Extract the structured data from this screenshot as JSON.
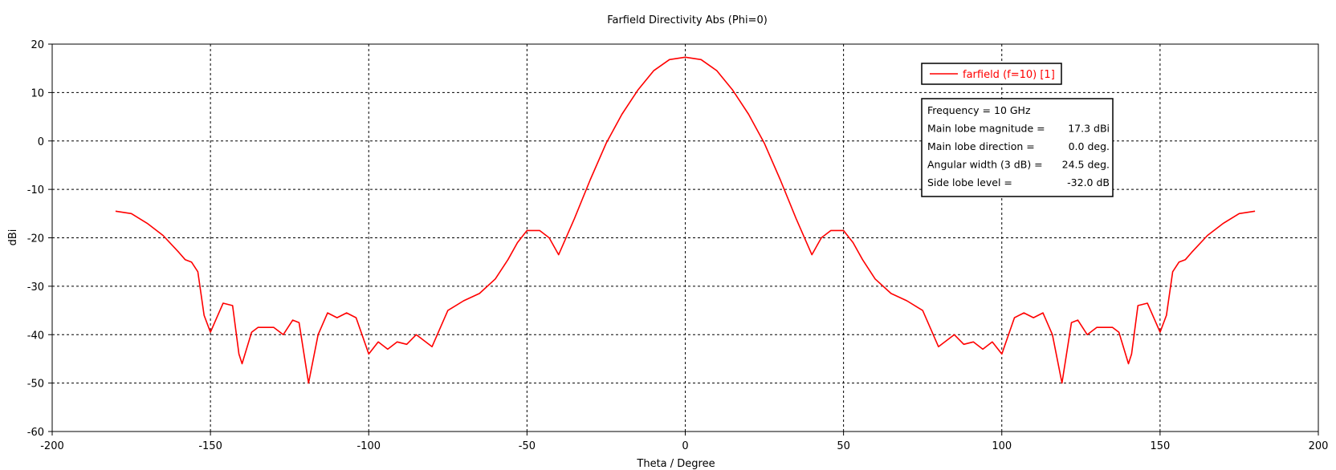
{
  "chart_data": {
    "type": "line",
    "title": "Farfield Directivity Abs (Phi=0)",
    "xlabel": "Theta / Degree",
    "ylabel": "dBi",
    "xlim": [
      -200,
      200
    ],
    "ylim": [
      -60,
      20
    ],
    "xticks": [
      -200,
      -150,
      -100,
      -50,
      0,
      50,
      100,
      150,
      200
    ],
    "yticks": [
      -60,
      -50,
      -40,
      -30,
      -20,
      -10,
      0,
      10,
      20
    ],
    "xtick_labels": [
      "-200",
      "-150",
      "-100",
      "-50",
      "0",
      "50",
      "100",
      "150",
      "200"
    ],
    "ytick_labels": [
      "-60",
      "-50",
      "-40",
      "-30",
      "-20",
      "-10",
      "0",
      "10",
      "20"
    ],
    "grid": true,
    "grid_style": "dashed",
    "legend_position": "top-right",
    "series": [
      {
        "name": "farfield (f=10) [1]",
        "color": "#ff0000",
        "x": [
          0,
          5,
          10,
          15,
          20,
          25,
          30,
          35,
          40,
          43,
          46,
          50,
          53,
          56,
          60,
          65,
          70,
          75,
          80,
          85,
          88,
          91,
          94,
          97,
          100,
          104,
          107,
          110,
          113,
          116,
          119,
          122,
          124,
          127,
          130,
          133,
          135,
          137,
          140,
          141,
          143,
          146,
          148,
          150,
          152,
          154,
          156,
          158,
          160,
          165,
          170,
          175,
          180
        ],
        "y": [
          17.3,
          16.8,
          14.5,
          10.5,
          5.5,
          -0.5,
          -8,
          -16,
          -23.5,
          -20,
          -18.5,
          -18.5,
          -21,
          -24.5,
          -28.5,
          -31.5,
          -33,
          -35,
          -42.5,
          -40,
          -42,
          -41.5,
          -43,
          -41.5,
          -44,
          -36.5,
          -35.5,
          -36.5,
          -35.5,
          -40,
          -50,
          -37.5,
          -37,
          -40,
          -38.5,
          -38.5,
          -38.5,
          -39.5,
          -46,
          -44,
          -34,
          -33.5,
          -36.5,
          -39.5,
          -36,
          -27,
          -25,
          -24.5,
          -23,
          -19.5,
          -17,
          -15,
          -14.5
        ]
      }
    ],
    "mirror_symmetric": true,
    "annotation_box": {
      "lines": [
        {
          "label": "Frequency = 10 GHz",
          "value": ""
        },
        {
          "label": "Main lobe magnitude =",
          "value": "17.3 dBi"
        },
        {
          "label": "Main lobe direction =",
          "value": "0.0 deg."
        },
        {
          "label": "Angular width (3 dB) =",
          "value": "24.5 deg."
        },
        {
          "label": "Side lobe level =",
          "value": "-32.0 dB"
        }
      ]
    }
  }
}
